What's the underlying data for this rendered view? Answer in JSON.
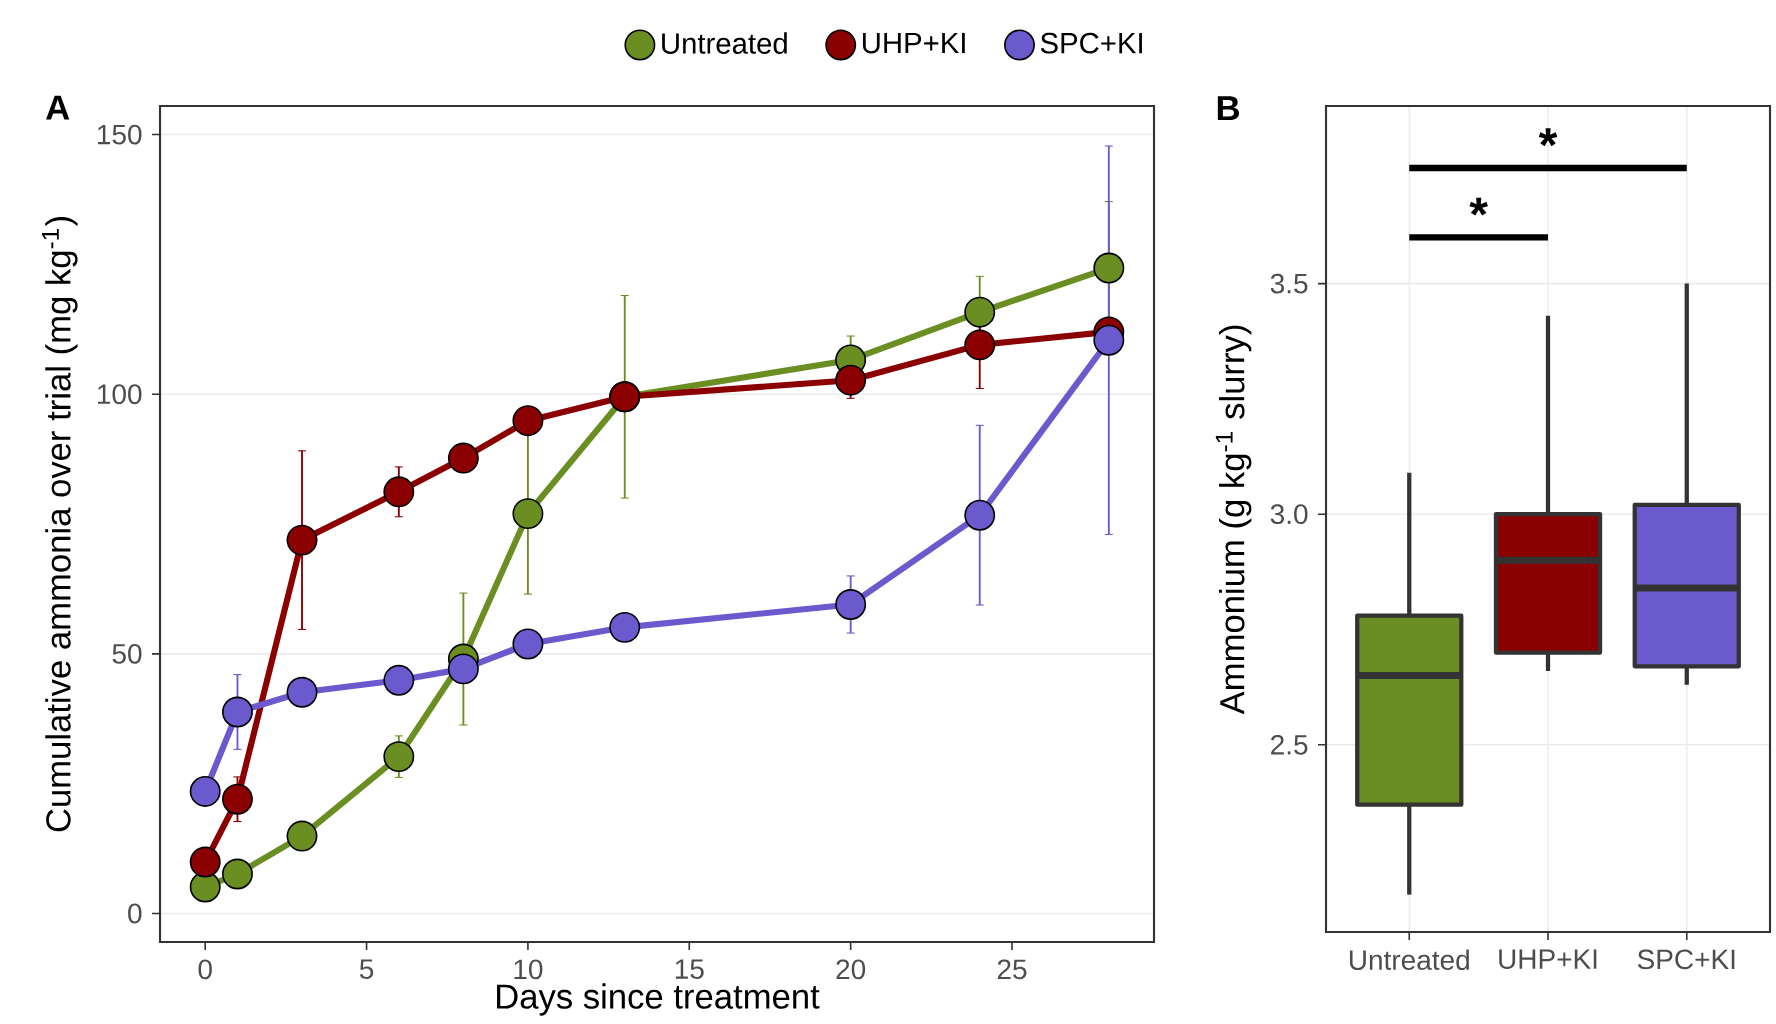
{
  "chart_data": [
    {
      "type": "line",
      "title": "A",
      "xlabel": "Days since treatment",
      "ylabel": "Cumulative ammonia over trial (mg kg$^{-1}$)",
      "x": [
        0,
        1,
        3,
        6,
        8,
        10,
        13,
        20,
        24,
        28
      ],
      "series": [
        {
          "name": "Untreated",
          "color": "#6b8e23",
          "values": [
            5.1,
            7.6,
            14.9,
            30.2,
            49,
            77,
            99.5,
            106.6,
            115.8,
            124.3
          ],
          "errors": [
            null,
            null,
            null,
            4,
            12.7,
            15.5,
            19.5,
            4.6,
            6.9,
            12.8
          ]
        },
        {
          "name": "UHP+KI",
          "color": "#8b0000",
          "values": [
            9.9,
            22,
            71.9,
            81.2,
            87.7,
            94.9,
            99.5,
            102.7,
            109.5,
            112
          ],
          "errors": [
            null,
            4.3,
            17.2,
            4.8,
            null,
            null,
            null,
            3.5,
            8.4,
            null
          ]
        },
        {
          "name": "SPC+KI",
          "color": "#6a5acd",
          "values": [
            23.5,
            38.8,
            42.6,
            44.9,
            47.1,
            51.9,
            55.1,
            59.5,
            76.7,
            110.4
          ],
          "errors": [
            null,
            7.2,
            null,
            null,
            null,
            null,
            null,
            5.5,
            17.3,
            37.4
          ]
        }
      ],
      "xlim": [
        -1.4,
        29.4
      ],
      "ylim": [
        -5.5,
        155.5
      ],
      "xticks": [
        0,
        5,
        10,
        15,
        20,
        25
      ],
      "yticks": [
        0,
        50,
        100,
        150
      ],
      "grid": "y",
      "legend": "top",
      "marker": "circle",
      "line_style": "solid"
    },
    {
      "type": "box",
      "title": "B",
      "ylabel": "Ammonium (g kg$^{-1}$ slurry)",
      "categories": [
        "Untreated",
        "UHP+KI",
        "SPC+KI"
      ],
      "boxes": [
        {
          "low": 2.175,
          "q1": 2.37,
          "median": 2.65,
          "q3": 2.78,
          "high": 3.09
        },
        {
          "low": 2.66,
          "q1": 2.7,
          "median": 2.9,
          "q3": 3.0,
          "high": 3.43
        },
        {
          "low": 2.63,
          "q1": 2.67,
          "median": 2.84,
          "q3": 3.02,
          "high": 3.5
        }
      ],
      "colors": [
        "#6b8e23",
        "#8b0000",
        "#6a5acd"
      ],
      "ylim": [
        2.094,
        3.885
      ],
      "yticks": [
        2.5,
        {
          "value": 3,
          "label": "3.0"
        },
        3.5
      ],
      "grid": true,
      "annotations": [
        "*",
        "*"
      ]
    }
  ]
}
